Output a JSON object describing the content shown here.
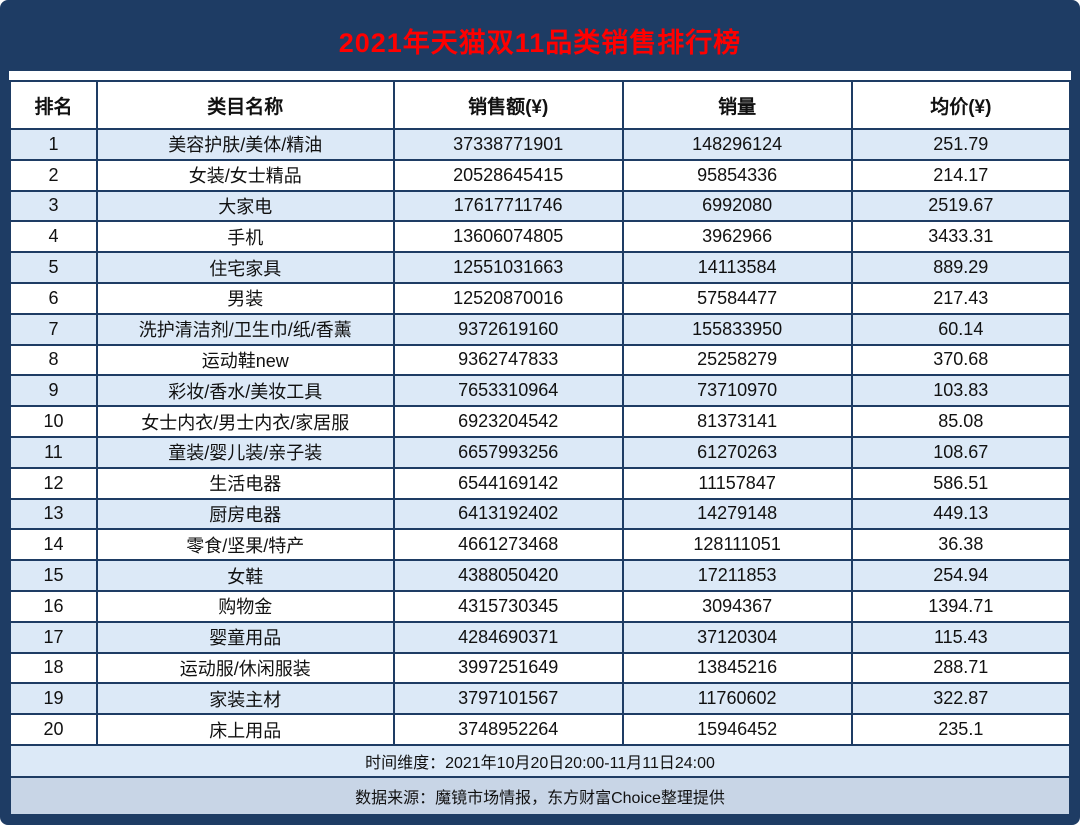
{
  "title": "2021年天猫双11品类销售排行榜",
  "chart_data": {
    "type": "table",
    "title": "2021年天猫双11品类销售排行榜",
    "columns": [
      "排名",
      "类目名称",
      "销售额(¥)",
      "销量",
      "均价(¥)"
    ],
    "rows": [
      [
        "1",
        "美容护肤/美体/精油",
        "37338771901",
        "148296124",
        "251.79"
      ],
      [
        "2",
        "女装/女士精品",
        "20528645415",
        "95854336",
        "214.17"
      ],
      [
        "3",
        "大家电",
        "17617711746",
        "6992080",
        "2519.67"
      ],
      [
        "4",
        "手机",
        "13606074805",
        "3962966",
        "3433.31"
      ],
      [
        "5",
        "住宅家具",
        "12551031663",
        "14113584",
        "889.29"
      ],
      [
        "6",
        "男装",
        "12520870016",
        "57584477",
        "217.43"
      ],
      [
        "7",
        "洗护清洁剂/卫生巾/纸/香薰",
        "9372619160",
        "155833950",
        "60.14"
      ],
      [
        "8",
        "运动鞋new",
        "9362747833",
        "25258279",
        "370.68"
      ],
      [
        "9",
        "彩妆/香水/美妆工具",
        "7653310964",
        "73710970",
        "103.83"
      ],
      [
        "10",
        "女士内衣/男士内衣/家居服",
        "6923204542",
        "81373141",
        "85.08"
      ],
      [
        "11",
        "童装/婴儿装/亲子装",
        "6657993256",
        "61270263",
        "108.67"
      ],
      [
        "12",
        "生活电器",
        "6544169142",
        "11157847",
        "586.51"
      ],
      [
        "13",
        "厨房电器",
        "6413192402",
        "14279148",
        "449.13"
      ],
      [
        "14",
        "零食/坚果/特产",
        "4661273468",
        "128111051",
        "36.38"
      ],
      [
        "15",
        "女鞋",
        "4388050420",
        "17211853",
        "254.94"
      ],
      [
        "16",
        "购物金",
        "4315730345",
        "3094367",
        "1394.71"
      ],
      [
        "17",
        "婴童用品",
        "4284690371",
        "37120304",
        "115.43"
      ],
      [
        "18",
        "运动服/休闲服装",
        "3997251649",
        "13845216",
        "288.71"
      ],
      [
        "19",
        "家装主材",
        "3797101567",
        "11760602",
        "322.87"
      ],
      [
        "20",
        "床上用品",
        "3748952264",
        "15946452",
        "235.1"
      ]
    ]
  },
  "footer": {
    "time_dimension": "时间维度：2021年10月20日20:00-11月11日24:00",
    "data_source": "数据来源：魔镜市场情报，东方财富Choice整理提供"
  },
  "colors": {
    "frame": "#1E3C64",
    "title_text": "#FF0000",
    "row_highlight": "#DCE9F7",
    "footer_source_bg": "#C8D5E6"
  }
}
